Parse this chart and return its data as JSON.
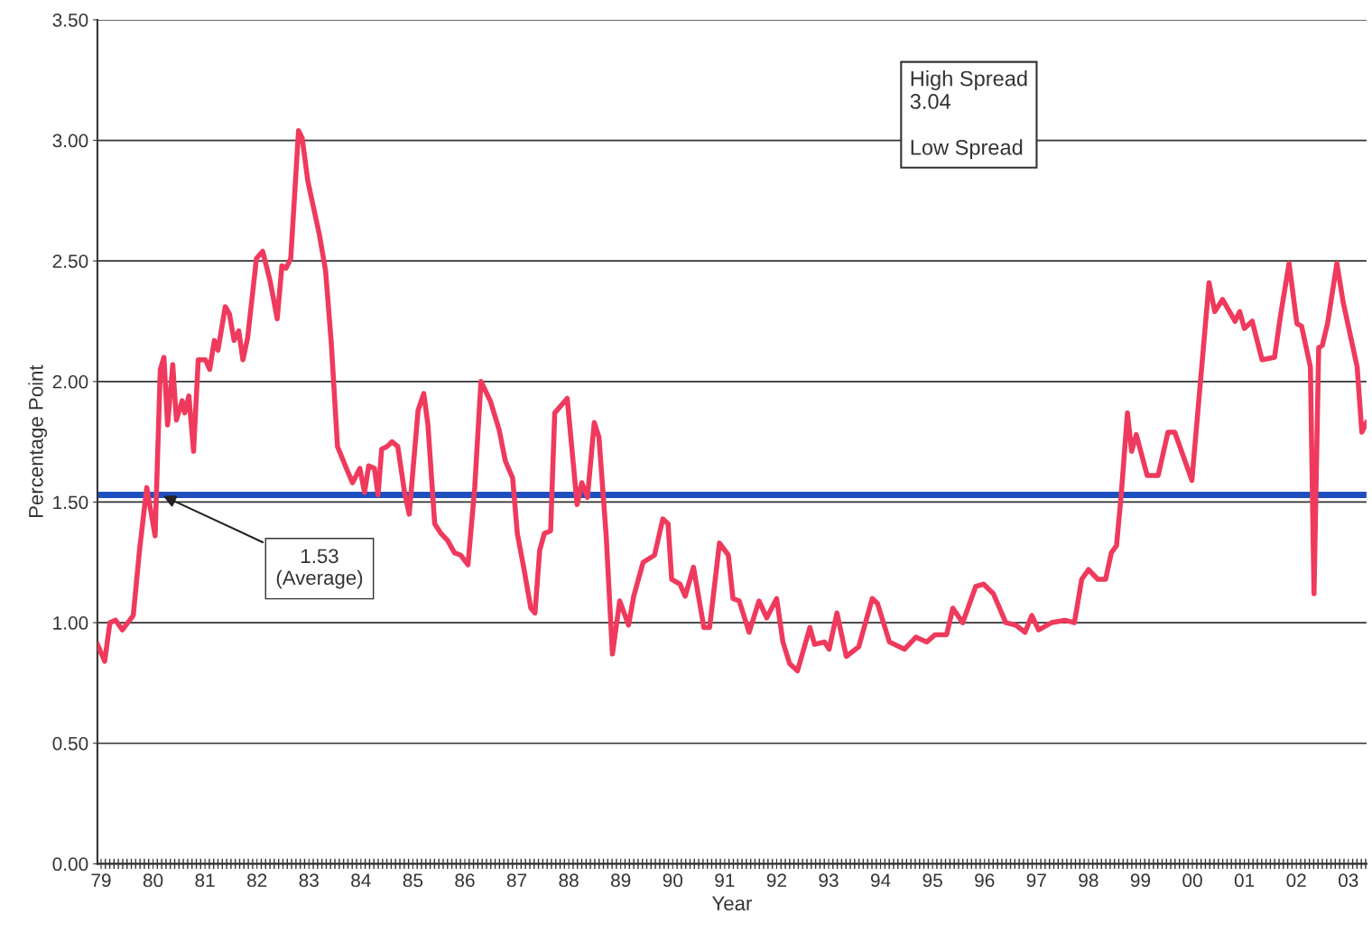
{
  "chart_data": {
    "type": "line",
    "xlabel": "Year",
    "ylabel": "Percentage Point",
    "xlim": [
      1978.93,
      2003.35
    ],
    "ylim": [
      0,
      3.5
    ],
    "xticks": [
      {
        "value": 1979,
        "label": "79"
      },
      {
        "value": 1980,
        "label": "80"
      },
      {
        "value": 1981,
        "label": "81"
      },
      {
        "value": 1982,
        "label": "82"
      },
      {
        "value": 1983,
        "label": "83"
      },
      {
        "value": 1984,
        "label": "84"
      },
      {
        "value": 1985,
        "label": "85"
      },
      {
        "value": 1986,
        "label": "86"
      },
      {
        "value": 1987,
        "label": "87"
      },
      {
        "value": 1988,
        "label": "88"
      },
      {
        "value": 1989,
        "label": "89"
      },
      {
        "value": 1990,
        "label": "90"
      },
      {
        "value": 1991,
        "label": "91"
      },
      {
        "value": 1992,
        "label": "92"
      },
      {
        "value": 1993,
        "label": "93"
      },
      {
        "value": 1994,
        "label": "94"
      },
      {
        "value": 1995,
        "label": "95"
      },
      {
        "value": 1996,
        "label": "96"
      },
      {
        "value": 1997,
        "label": "97"
      },
      {
        "value": 1998,
        "label": "98"
      },
      {
        "value": 1999,
        "label": "99"
      },
      {
        "value": 2000,
        "label": "00"
      },
      {
        "value": 2001,
        "label": "01"
      },
      {
        "value": 2002,
        "label": "02"
      },
      {
        "value": 2003,
        "label": "03"
      }
    ],
    "yticks": [
      {
        "value": 0,
        "label": "0.00"
      },
      {
        "value": 0.5,
        "label": "0.50"
      },
      {
        "value": 1,
        "label": "1.00"
      },
      {
        "value": 1.5,
        "label": "1.50"
      },
      {
        "value": 2,
        "label": "2.00"
      },
      {
        "value": 2.5,
        "label": "2.50"
      },
      {
        "value": 3,
        "label": "3.00"
      },
      {
        "value": 3.5,
        "label": "3.50"
      }
    ],
    "grid": "y",
    "marker": "none",
    "line_style": "solid",
    "series": [
      {
        "color": "#ef3a5d",
        "x": [
          1978.93,
          1979.07,
          1979.17,
          1979.28,
          1979.41,
          1979.62,
          1979.74,
          1979.88,
          1980.04,
          1980.14,
          1980.21,
          1980.28,
          1980.38,
          1980.45,
          1980.56,
          1980.61,
          1980.69,
          1980.78,
          1980.87,
          1981.01,
          1981.09,
          1981.18,
          1981.25,
          1981.39,
          1981.47,
          1981.56,
          1981.65,
          1981.73,
          1981.82,
          1981.99,
          1982.11,
          1982.25,
          1982.39,
          1982.48,
          1982.56,
          1982.65,
          1982.8,
          1982.87,
          1982.98,
          1983.08,
          1983.2,
          1983.32,
          1983.43,
          1983.55,
          1983.74,
          1983.84,
          1983.98,
          1984.07,
          1984.15,
          1984.26,
          1984.33,
          1984.4,
          1984.5,
          1984.6,
          1984.71,
          1984.84,
          1984.93,
          1985.1,
          1985.21,
          1985.29,
          1985.42,
          1985.54,
          1985.67,
          1985.8,
          1985.92,
          1986.06,
          1986.19,
          1986.31,
          1986.49,
          1986.66,
          1986.78,
          1986.92,
          1987.01,
          1987.14,
          1987.27,
          1987.35,
          1987.44,
          1987.53,
          1987.65,
          1987.73,
          1987.97,
          1988.16,
          1988.25,
          1988.36,
          1988.49,
          1988.58,
          1988.72,
          1988.84,
          1988.98,
          1989.15,
          1989.25,
          1989.43,
          1989.65,
          1989.81,
          1989.91,
          1989.98,
          1990.14,
          1990.24,
          1990.4,
          1990.6,
          1990.71,
          1990.9,
          1991.07,
          1991.16,
          1991.28,
          1991.47,
          1991.66,
          1991.81,
          1992.0,
          1992.12,
          1992.25,
          1992.4,
          1992.64,
          1992.73,
          1992.92,
          1993.01,
          1993.16,
          1993.34,
          1993.58,
          1993.84,
          1993.94,
          1994.17,
          1994.46,
          1994.68,
          1994.89,
          1995.05,
          1995.27,
          1995.39,
          1995.58,
          1995.83,
          1995.98,
          1996.17,
          1996.41,
          1996.6,
          1996.78,
          1996.91,
          1997.04,
          1997.29,
          1997.55,
          1997.73,
          1997.87,
          1998.0,
          1998.18,
          1998.33,
          1998.44,
          1998.54,
          1998.63,
          1998.75,
          1998.83,
          1998.92,
          1999.13,
          1999.34,
          1999.53,
          1999.66,
          1999.99,
          2000.32,
          2000.43,
          2000.58,
          2000.82,
          2000.91,
          2001.0,
          2001.15,
          2001.34,
          2001.58,
          2001.7,
          2001.86,
          2002.01,
          2002.1,
          2002.27,
          2002.34,
          2002.43,
          2002.5,
          2002.6,
          2002.78,
          2002.9,
          2003.17,
          2003.26,
          2003.35
        ],
        "values": [
          0.91,
          0.84,
          1.0,
          1.01,
          0.97,
          1.03,
          1.3,
          1.56,
          1.36,
          2.05,
          2.1,
          1.82,
          2.07,
          1.84,
          1.92,
          1.87,
          1.94,
          1.71,
          2.09,
          2.09,
          2.05,
          2.17,
          2.13,
          2.31,
          2.28,
          2.17,
          2.21,
          2.09,
          2.18,
          2.51,
          2.54,
          2.42,
          2.26,
          2.48,
          2.47,
          2.51,
          3.04,
          3.01,
          2.83,
          2.73,
          2.61,
          2.46,
          2.16,
          1.73,
          1.63,
          1.58,
          1.64,
          1.54,
          1.65,
          1.64,
          1.53,
          1.72,
          1.73,
          1.75,
          1.73,
          1.54,
          1.45,
          1.88,
          1.95,
          1.82,
          1.41,
          1.37,
          1.34,
          1.29,
          1.28,
          1.24,
          1.56,
          2.0,
          1.92,
          1.8,
          1.67,
          1.6,
          1.37,
          1.22,
          1.06,
          1.04,
          1.3,
          1.37,
          1.38,
          1.87,
          1.93,
          1.49,
          1.58,
          1.52,
          1.83,
          1.77,
          1.36,
          0.87,
          1.09,
          0.99,
          1.11,
          1.25,
          1.28,
          1.43,
          1.41,
          1.18,
          1.16,
          1.11,
          1.23,
          0.98,
          0.98,
          1.33,
          1.28,
          1.1,
          1.09,
          0.96,
          1.09,
          1.02,
          1.1,
          0.92,
          0.83,
          0.8,
          0.98,
          0.91,
          0.92,
          0.89,
          1.04,
          0.86,
          0.9,
          1.1,
          1.08,
          0.92,
          0.89,
          0.94,
          0.92,
          0.95,
          0.95,
          1.06,
          1.0,
          1.15,
          1.16,
          1.12,
          1.0,
          0.99,
          0.96,
          1.03,
          0.97,
          1.0,
          1.01,
          1.0,
          1.18,
          1.22,
          1.18,
          1.18,
          1.29,
          1.32,
          1.53,
          1.87,
          1.71,
          1.78,
          1.61,
          1.61,
          1.79,
          1.79,
          1.59,
          2.41,
          2.29,
          2.34,
          2.25,
          2.29,
          2.22,
          2.25,
          2.09,
          2.1,
          2.28,
          2.49,
          2.24,
          2.23,
          2.06,
          1.12,
          2.14,
          2.15,
          2.24,
          2.49,
          2.33,
          2.06,
          1.79,
          1.83
        ]
      }
    ],
    "ref_lines": [
      {
        "axis": "y",
        "value": 1.53,
        "label": "1.53\n(Average)",
        "color": "#1f4fbf",
        "line_style": "solid"
      }
    ],
    "annotations": [
      "High Spread\n3.04\n\nLow Spread"
    ]
  }
}
